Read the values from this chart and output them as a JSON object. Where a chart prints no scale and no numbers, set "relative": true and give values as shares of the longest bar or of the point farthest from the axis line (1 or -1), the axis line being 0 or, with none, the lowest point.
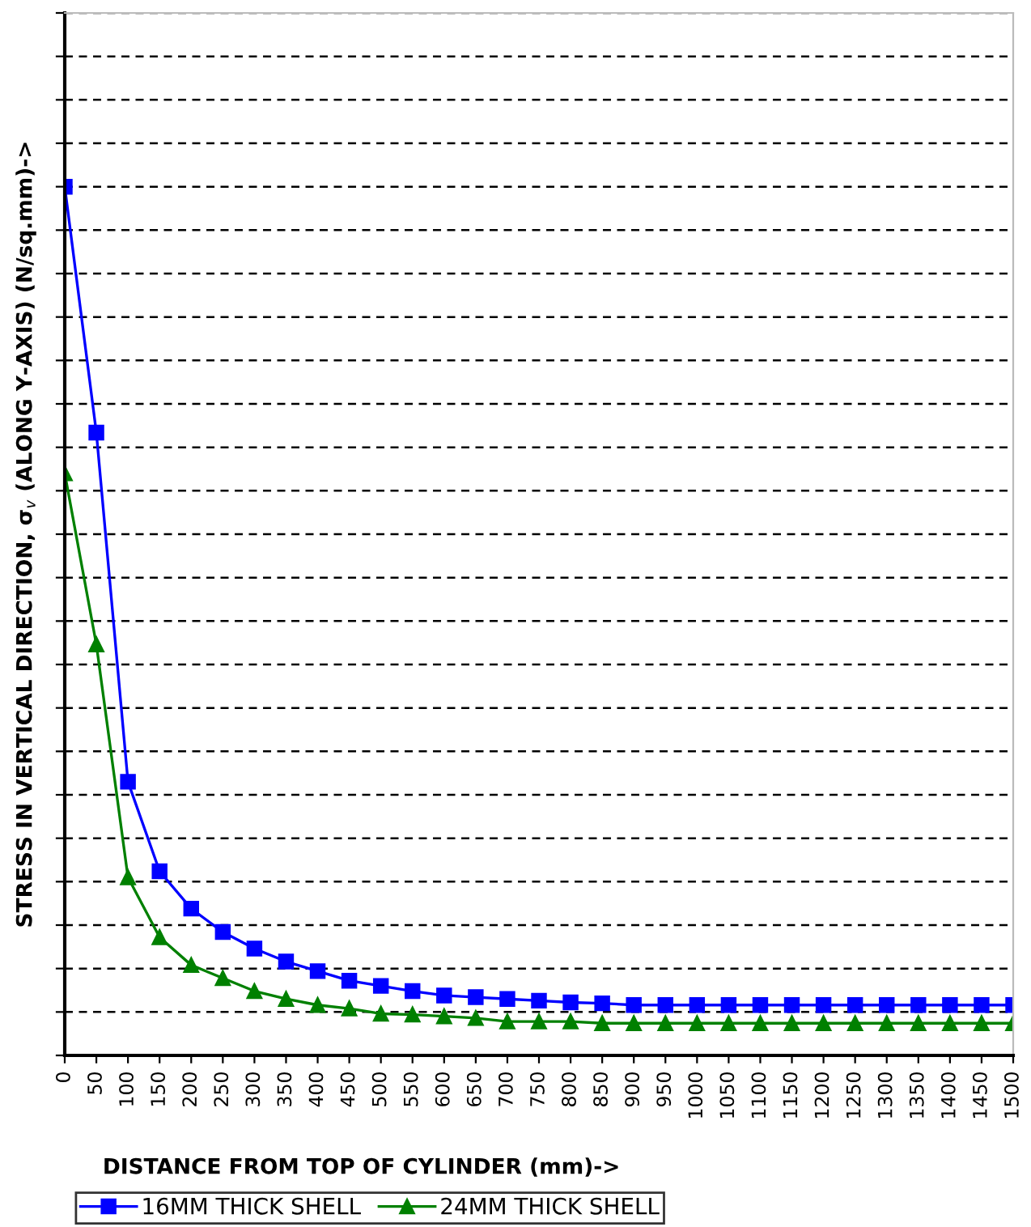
{
  "chart_data": {
    "type": "line",
    "xlabel": "DISTANCE FROM TOP OF CYLINDER (mm)->",
    "ylabel": "STRESS IN VERTICAL DIRECTION, σ$_{v}$ (ALONG Y-AXIS) (N/sq.mm)->",
    "categories": [
      "0",
      "50",
      "100",
      "150",
      "200",
      "250",
      "300",
      "350",
      "400",
      "450",
      "500",
      "550",
      "600",
      "650",
      "700",
      "750",
      "800",
      "850",
      "900",
      "950",
      "1000",
      "1050",
      "1100",
      "1150",
      "1200",
      "1250",
      "1300",
      "1350",
      "1400",
      "1450",
      "1500"
    ],
    "relative": true,
    "series": [
      {
        "name": "16MM THICK SHELL",
        "color": "#0000ff",
        "marker": "square",
        "values": [
          1,
          0.717,
          0.315,
          0.212,
          0.169,
          0.142,
          0.123,
          0.108,
          0.097,
          0.086,
          0.08,
          0.074,
          0.069,
          0.067,
          0.065,
          0.063,
          0.061,
          0.06,
          0.058,
          0.058,
          0.058,
          0.058,
          0.058,
          0.058,
          0.058,
          0.058,
          0.058,
          0.058,
          0.058,
          0.058,
          0.058
        ]
      },
      {
        "name": "24MM THICK SHELL",
        "color": "#008000",
        "marker": "triangle",
        "values": [
          0.67,
          0.473,
          0.205,
          0.136,
          0.104,
          0.089,
          0.074,
          0.065,
          0.058,
          0.054,
          0.048,
          0.047,
          0.045,
          0.043,
          0.039,
          0.039,
          0.039,
          0.037,
          0.037,
          0.037,
          0.037,
          0.037,
          0.037,
          0.037,
          0.037,
          0.037,
          0.037,
          0.037,
          0.037,
          0.037,
          0.037
        ]
      }
    ],
    "grid": "y",
    "legend": "bottom",
    "line_style": "solid"
  }
}
